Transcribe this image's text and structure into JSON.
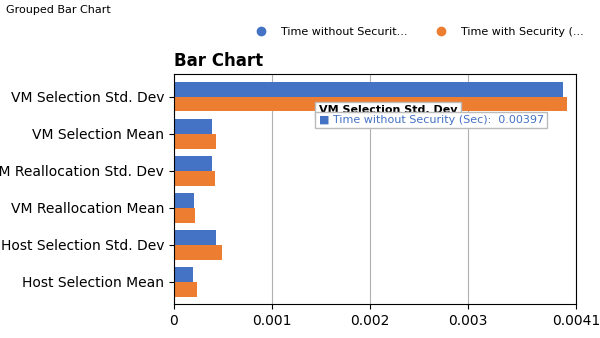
{
  "chart_data": {
    "type": "bar",
    "orientation": "horizontal",
    "title": "Bar Chart",
    "subtitle": "Grouped Bar Chart",
    "categories": [
      "Host Selection Mean",
      "Host Selection Std. Dev",
      "VM Reallocation Mean",
      "VM Reallocation Std. Dev",
      "VM Selection Mean",
      "VM Selection Std. Dev"
    ],
    "series": [
      {
        "name": "Time without Securit...",
        "color": "#4472c4",
        "values": [
          0.000195,
          0.00043,
          0.000205,
          0.000385,
          0.00039,
          0.00397
        ]
      },
      {
        "name": "Time with Security (...",
        "color": "#ed7d31",
        "values": [
          0.000235,
          0.00049,
          0.000215,
          0.000415,
          0.00043,
          0.00401
        ]
      }
    ],
    "xlim": [
      0,
      0.0041
    ],
    "xticks": [
      0,
      0.001,
      0.002,
      0.003,
      0.0041
    ],
    "grid": true,
    "legend": "upper right",
    "annotations": [
      {
        "category": "VM Selection Std. Dev",
        "title": "VM Selection Std. Dev",
        "text": "■ Time without Security (Sec):  0.00397",
        "color": "#4472c4"
      }
    ]
  }
}
